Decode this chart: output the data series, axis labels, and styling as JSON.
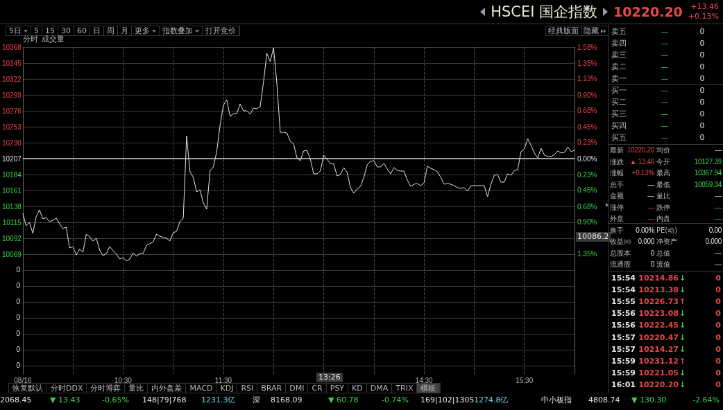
{
  "chart_data": {
    "type": "line",
    "title": "HSCEI 国企指数",
    "subtitle": "10220.20",
    "categories": [
      "08/16",
      null,
      null,
      null,
      null,
      null,
      null,
      null,
      null,
      null,
      null,
      null,
      null,
      null,
      null,
      null,
      null,
      null,
      null,
      null,
      null,
      null,
      null,
      null,
      null,
      null,
      null,
      null,
      null,
      null,
      "10:30",
      null,
      null,
      null,
      null,
      null,
      null,
      null,
      null,
      null,
      null,
      null,
      null,
      null,
      null,
      null,
      null,
      null,
      null,
      null,
      null,
      null,
      null,
      null,
      null,
      null,
      null,
      null,
      null,
      null,
      "11:30",
      null,
      null,
      null,
      null,
      null,
      null,
      null,
      null,
      null,
      null,
      null,
      null,
      null,
      null,
      null,
      null,
      null,
      null,
      null,
      null,
      null,
      null,
      null,
      null,
      null,
      null,
      null,
      null,
      null,
      null,
      null,
      null,
      null,
      null,
      null,
      null,
      null,
      null,
      null,
      null,
      null,
      null,
      null,
      null,
      null,
      null,
      null,
      null,
      null,
      null,
      null,
      null,
      null,
      null,
      null,
      null,
      null,
      null,
      null,
      "14:30",
      null,
      null,
      null,
      null,
      null,
      null,
      null,
      null,
      null,
      null,
      null,
      null,
      null,
      null,
      null,
      null,
      null,
      null,
      null,
      null,
      null,
      null,
      null,
      null,
      null,
      null,
      null,
      null,
      null,
      "15:30",
      null,
      null,
      null,
      null,
      null,
      null,
      null,
      null,
      null,
      null,
      null,
      null,
      null,
      null,
      null
    ],
    "series": [
      {
        "color": "#e6e6e6",
        "values": [
          10128,
          10110,
          10115,
          10099,
          10123,
          10133,
          10120,
          10122,
          10116,
          10118,
          10121,
          10113,
          10106,
          10108,
          10078,
          10080,
          10068,
          10076,
          10072,
          10098,
          10094,
          10088,
          10092,
          10075,
          10067,
          10070,
          10080,
          10074,
          10069,
          10062,
          10064,
          10059,
          10062,
          10071,
          10066,
          10070,
          10070,
          10082,
          10084,
          10087,
          10098,
          10095,
          10093,
          10092,
          10088,
          10100,
          10102,
          10116,
          10121,
          10240,
          10188,
          10180,
          10159,
          10162,
          10143,
          10134,
          10189,
          10195,
          10217,
          10255,
          10284,
          10292,
          10268,
          10272,
          10272,
          10286,
          10276,
          10276,
          10271,
          10280,
          10279,
          10282,
          10318,
          10359,
          10347,
          10367,
          10315,
          10245,
          10245,
          10244,
          10232,
          10228,
          10208,
          10204,
          10218,
          10219,
          10206,
          10185,
          10185,
          10189,
          10212,
          10206,
          10200,
          10199,
          10182,
          10184,
          10194,
          10187,
          10165,
          10157,
          10163,
          10167,
          10180,
          10198,
          10203,
          10204,
          10195,
          10195,
          10200,
          10192,
          10185,
          10194,
          10190,
          10189,
          10189,
          10176,
          10167,
          10170,
          10171,
          10168,
          10172,
          10196,
          10193,
          10191,
          10188,
          10180,
          10170,
          10171,
          10170,
          10168,
          10165,
          10164,
          10165,
          10160,
          10168,
          10168,
          10168,
          10168,
          10168,
          10152,
          10170,
          10183,
          10184,
          10173,
          10173,
          10185,
          10183,
          10190,
          10191,
          10217,
          10221,
          10236,
          10226,
          10215,
          10208,
          10222,
          10212,
          10210,
          10210,
          10213,
          10218,
          10215,
          10216,
          10224,
          10217,
          10219
        ]
      }
    ],
    "ylim": [
      9896,
      10368
    ],
    "yticks": [
      10368,
      10345,
      10322,
      10299,
      10276,
      10253,
      10230,
      10207,
      10184,
      10161,
      10138,
      10115,
      10092,
      10069,
      {
        "value": 10046,
        "label": null
      },
      {
        "value": 10023,
        "label": null
      },
      {
        "value": 10000,
        "label": null
      },
      {
        "value": 9977,
        "label": null
      },
      {
        "value": 9954,
        "label": null
      },
      {
        "value": 9931,
        "label": null
      },
      {
        "value": 9908,
        "label": null
      }
    ],
    "y2lim": [
      -3.05,
      1.58
    ],
    "y2ticks": [
      {
        "value": 1.58,
        "label": "1.58%"
      },
      {
        "value": 1.35,
        "label": "1.35%"
      },
      {
        "value": 1.13,
        "label": "1.13%"
      },
      {
        "value": 0.9,
        "label": "0.90%"
      },
      {
        "value": 0.68,
        "label": "0.68%"
      },
      {
        "value": 0.45,
        "label": "0.45%"
      },
      {
        "value": 0.23,
        "label": "0.23%"
      },
      {
        "value": 0,
        "label": "0.00%"
      },
      {
        "value": -0.23,
        "label": "0.23%"
      },
      {
        "value": -0.45,
        "label": "0.45%"
      },
      {
        "value": -0.68,
        "label": "0.68%"
      },
      {
        "value": -0.9,
        "label": "0.90%"
      },
      {
        "value": -1.35,
        "label": "1.35%"
      }
    ],
    "ref_lines": [
      {
        "axis": "y",
        "value": 10207,
        "color": "#c8c8c8"
      }
    ],
    "grid": true,
    "marker": "none",
    "annotations": [
      "+13.46",
      "+0.13%",
      "5日",
      "5",
      "15",
      "30",
      "60",
      "日",
      "周",
      "月",
      "更多",
      "指数叠加",
      "打开竞价",
      "经典版面",
      "隐藏",
      "分时",
      "成交量",
      "13:26",
      "10086.2",
      "卖五",
      "—",
      "0",
      "卖四",
      "—",
      "0",
      "卖三",
      "—",
      "0",
      "卖二",
      "—",
      "0",
      "卖一",
      "—",
      "0",
      "买一",
      "—",
      "0",
      "买二",
      "—",
      "0",
      "买三",
      "—",
      "0",
      "买四",
      "—",
      "0",
      "买五",
      "—",
      "0",
      "最新",
      "10220.20",
      "均价",
      "—",
      "涨跌",
      "▲ 13.46",
      "今开",
      "10127.39",
      "涨幅",
      "+0.13%",
      "最高",
      "10367.94",
      "总手",
      "—",
      "最低",
      "10059.34",
      "金额",
      "—",
      "量比",
      "—",
      "涨停",
      "—",
      "跌停",
      "—",
      "外盘",
      "—",
      "内盘",
      "—",
      "换手",
      "0.00%",
      "PE(动)",
      "0.00",
      "收益㈣",
      "0.000",
      "净资产",
      "0.000",
      "总股本",
      "0",
      "总值",
      "—",
      "流通股",
      "0",
      "流值",
      "—",
      "15:54",
      "10214.86",
      "↓",
      "0",
      "15:54",
      "10213.38",
      "↓",
      "0",
      "15:55",
      "10226.73",
      "↑",
      "0",
      "15:56",
      "10223.08",
      "↓",
      "0",
      "15:56",
      "10222.45",
      "↓",
      "0",
      "15:57",
      "10220.47",
      "↓",
      "0",
      "15:57",
      "10214.27",
      "↓",
      "0",
      "15:59",
      "10231.12",
      "↑",
      "0",
      "15:59",
      "10221.05",
      "↓",
      "0",
      "16:01",
      "10220.20",
      "↓",
      "0",
      "恢复默认",
      "分时DDX",
      "分时博弈",
      "量比",
      "内外盘差",
      "MACD",
      "KDJ",
      "RSI",
      "BRAR",
      "DMI",
      "CR",
      "PSY",
      "KD",
      "DMA",
      "TRIX",
      "模板",
      "2068.45",
      "▼ 13.43",
      "-0.65%",
      "148|79|768",
      "1231.3亿",
      "深",
      "8168.09",
      "▼ 60.78",
      "-0.74%",
      "169|102|1305",
      "1274.8亿",
      "中小板指",
      "4808.74",
      "▼ 130.30",
      "-2.64%",
      "0",
      "0",
      "0",
      "0",
      "0",
      "0",
      "0"
    ]
  }
}
